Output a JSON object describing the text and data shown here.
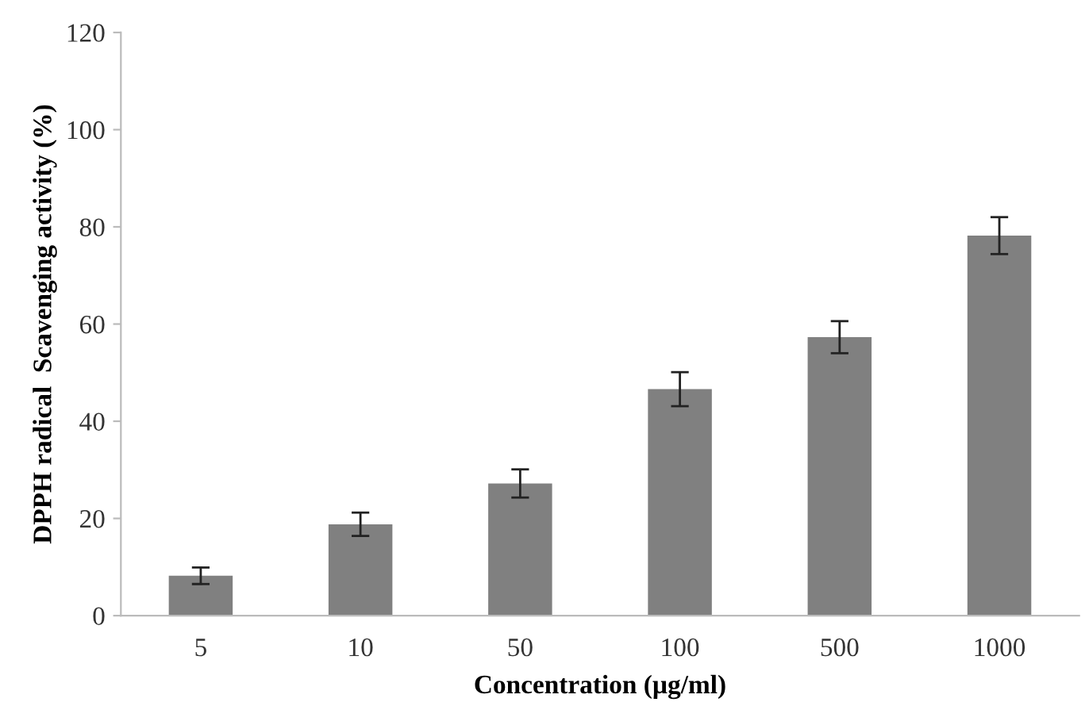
{
  "chart_data": {
    "type": "bar",
    "xlabel": "Concentration (µg/ml)",
    "ylabel": "DPPH radical  Scavenging activity (%)",
    "categories": [
      "5",
      "10",
      "50",
      "100",
      "500",
      "1000"
    ],
    "values": [
      8.2,
      18.8,
      27.2,
      46.6,
      57.3,
      78.2
    ],
    "errors": [
      1.7,
      2.4,
      2.9,
      3.5,
      3.3,
      3.8
    ],
    "color": "#808080",
    "ylim": [
      0,
      120
    ],
    "yticks": [
      0,
      20,
      40,
      60,
      80,
      100,
      120
    ],
    "grid": false,
    "legend": false
  }
}
